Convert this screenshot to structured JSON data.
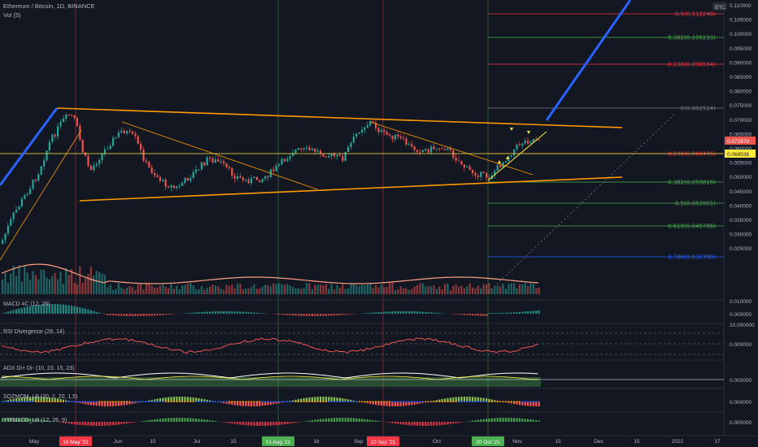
{
  "header": {
    "title": "Ethereum / Bitcoin, 1D, BINANCE",
    "volume_label": "Vol (5)",
    "currency_badge": "BTC"
  },
  "indicators": [
    {
      "label": "MACD 4C (12, 26)"
    },
    {
      "label": "RSI Divergence (28, 14)"
    },
    {
      "label": "ADX Di+ Di- (10, 23, 15, 23)"
    },
    {
      "label": "SQZMOM_LB (20, 2, 20, 1.5)"
    },
    {
      "label": "VWMACD_LB (12, 26, 9)"
    }
  ],
  "price_axis": {
    "ticks": [
      "0.110000",
      "0.105000",
      "0.100000",
      "0.095000",
      "0.090000",
      "0.085000",
      "0.080000",
      "0.075000",
      "0.070000",
      "0.065000",
      "0.060000",
      "0.055000",
      "0.050000",
      "0.045000",
      "0.040000",
      "0.035000",
      "0.030000",
      "0.025000"
    ],
    "last_price": "0.072870",
    "crosshair_price": "0.068536"
  },
  "indicator_axis": {
    "macd": "0.000000",
    "macd_top": "0.010000",
    "rsi_top": "10.000000",
    "rsi": "0.000000",
    "adx": "0.000000",
    "sqz": "0.000000",
    "vwmacd": "0.000000"
  },
  "fib_levels": [
    {
      "label": "-0.5(0.112248)",
      "color": "#f23645"
    },
    {
      "label": "-0.382(0.105233)",
      "color": "#4caf50"
    },
    {
      "label": "-0.236(0.096554)",
      "color": "#f23645"
    },
    {
      "label": "0(0.082524)",
      "color": "#787b86"
    },
    {
      "label": "0.236(0.068495)",
      "color": "#f23645"
    },
    {
      "label": "0.382(0.059816)",
      "color": "#4caf50"
    },
    {
      "label": "0.5(0.052801)",
      "color": "#4caf50"
    },
    {
      "label": "0.618(0.045786)",
      "color": "#4caf50"
    },
    {
      "label": "0.786(0.035799)",
      "color": "#2962ff"
    }
  ],
  "time_axis": {
    "labels": [
      "May",
      "Jun",
      "15",
      "Jul",
      "15",
      "16",
      "Sep",
      "Oct",
      "Nov",
      "15",
      "Dec",
      "15",
      "2022",
      "17"
    ],
    "highlighted": [
      {
        "label": "16 May '21",
        "color": "#f23645"
      },
      {
        "label": "01 Aug '21",
        "color": "#4caf50"
      },
      {
        "label": "10 Sep '21",
        "color": "#f23645"
      },
      {
        "label": "20 Oct '21",
        "color": "#4caf50"
      }
    ]
  },
  "colors": {
    "background": "#131722",
    "up": "#26a69a",
    "down": "#ef5350",
    "trendline": "#ff9800",
    "horizontal": "#ffeb3b",
    "projection": "#2962ff"
  }
}
